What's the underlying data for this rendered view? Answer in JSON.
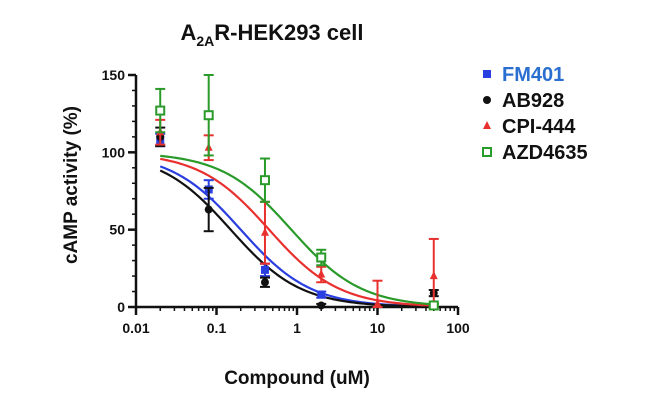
{
  "chart_data": {
    "type": "scatter",
    "title": {
      "main": "A",
      "sub": "2A",
      "rest": "R-HEK293 cell"
    },
    "xlabel": "Compound (uM)",
    "ylabel": "cAMP activity (%)",
    "xscale": "log",
    "xlim": [
      0.01,
      100
    ],
    "ylim": [
      0,
      150
    ],
    "xticks": [
      0.01,
      0.1,
      1,
      10,
      100
    ],
    "xtick_labels": [
      "0.01",
      "0.1",
      "1",
      "10",
      "100"
    ],
    "yticks": [
      0,
      50,
      100,
      150
    ],
    "ytick_labels": [
      "0",
      "50",
      "100",
      "150"
    ],
    "grid": false,
    "legend_position": "top-right",
    "series": [
      {
        "name": "FM401",
        "color": "#2a3fe0",
        "label_color": "#2a6fd0",
        "marker": "square-filled",
        "points": [
          {
            "x": 0.02,
            "y": 108,
            "err": 4
          },
          {
            "x": 0.08,
            "y": 76,
            "err": 6
          },
          {
            "x": 0.4,
            "y": 24,
            "err": 4
          },
          {
            "x": 2,
            "y": 8,
            "err": 2
          },
          {
            "x": 50,
            "y": 1,
            "err": 1
          }
        ],
        "ic50": 0.2,
        "top": 100,
        "bottom": 0,
        "hill": 1.0
      },
      {
        "name": "AB928",
        "color": "#111111",
        "label_color": "#111111",
        "marker": "circle-filled",
        "points": [
          {
            "x": 0.02,
            "y": 110,
            "err": 6
          },
          {
            "x": 0.08,
            "y": 63,
            "err": 14
          },
          {
            "x": 0.4,
            "y": 16,
            "err": 3
          },
          {
            "x": 2,
            "y": 1,
            "err": 1
          },
          {
            "x": 50,
            "y": 9,
            "err": 2
          }
        ],
        "ic50": 0.15,
        "top": 100,
        "bottom": 0,
        "hill": 1.0
      },
      {
        "name": "CPI-444",
        "color": "#e8312e",
        "label_color": "#111111",
        "marker": "triangle-filled",
        "points": [
          {
            "x": 0.02,
            "y": 113,
            "err": 8
          },
          {
            "x": 0.08,
            "y": 103,
            "err": 8
          },
          {
            "x": 0.4,
            "y": 48,
            "err": 20
          },
          {
            "x": 2,
            "y": 21,
            "err": 5
          },
          {
            "x": 10,
            "y": 2,
            "err": 15
          },
          {
            "x": 50,
            "y": 20,
            "err": 24
          }
        ],
        "ic50": 0.45,
        "top": 100,
        "bottom": 0,
        "hill": 1.0
      },
      {
        "name": "AZD4635",
        "color": "#2a9a2a",
        "label_color": "#111111",
        "marker": "square-open",
        "points": [
          {
            "x": 0.02,
            "y": 127,
            "err": 14
          },
          {
            "x": 0.08,
            "y": 124,
            "err": 26
          },
          {
            "x": 0.4,
            "y": 82,
            "err": 14
          },
          {
            "x": 2,
            "y": 32,
            "err": 5
          },
          {
            "x": 50,
            "y": 1,
            "err": 1
          }
        ],
        "ic50": 0.85,
        "top": 100,
        "bottom": 0,
        "hill": 1.0
      }
    ]
  }
}
